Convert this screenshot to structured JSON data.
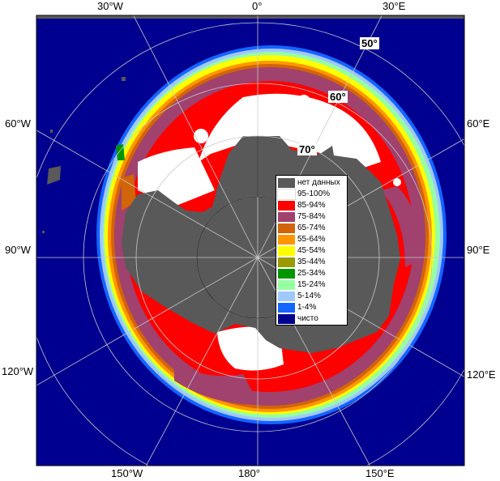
{
  "map": {
    "lon_labels_top": [
      "30°W",
      "0°",
      "30°E"
    ],
    "lon_labels_bottom": [
      "150°W",
      "180°",
      "150°E"
    ],
    "lon_labels_left": [
      "60°W",
      "90°W",
      "120°W"
    ],
    "lon_labels_right": [
      "60°E",
      "90°E",
      "120°E"
    ],
    "lat_labels": [
      "50°",
      "60°",
      "70°"
    ]
  },
  "legend": {
    "items": [
      {
        "label": "нет данных",
        "color": "#595959"
      },
      {
        "label": "95-100%",
        "color": "#ffffff"
      },
      {
        "label": "85-94%",
        "color": "#ff0000"
      },
      {
        "label": "75-84%",
        "color": "#a0416e"
      },
      {
        "label": "65-74%",
        "color": "#d2640a"
      },
      {
        "label": "55-64%",
        "color": "#ff9600"
      },
      {
        "label": "45-54%",
        "color": "#ffff00"
      },
      {
        "label": "35-44%",
        "color": "#9b9b00"
      },
      {
        "label": "25-34%",
        "color": "#009600"
      },
      {
        "label": "15-24%",
        "color": "#96ffa0"
      },
      {
        "label": "5-14%",
        "color": "#a0c8ff"
      },
      {
        "label": "1-4%",
        "color": "#1464ff"
      },
      {
        "label": "чисто",
        "color": "#000090"
      }
    ]
  },
  "colors": {
    "ocean": "#000090",
    "land_nodata": "#595959",
    "grid": "#c8c8c8",
    "frame_bg": "#ffffff"
  }
}
